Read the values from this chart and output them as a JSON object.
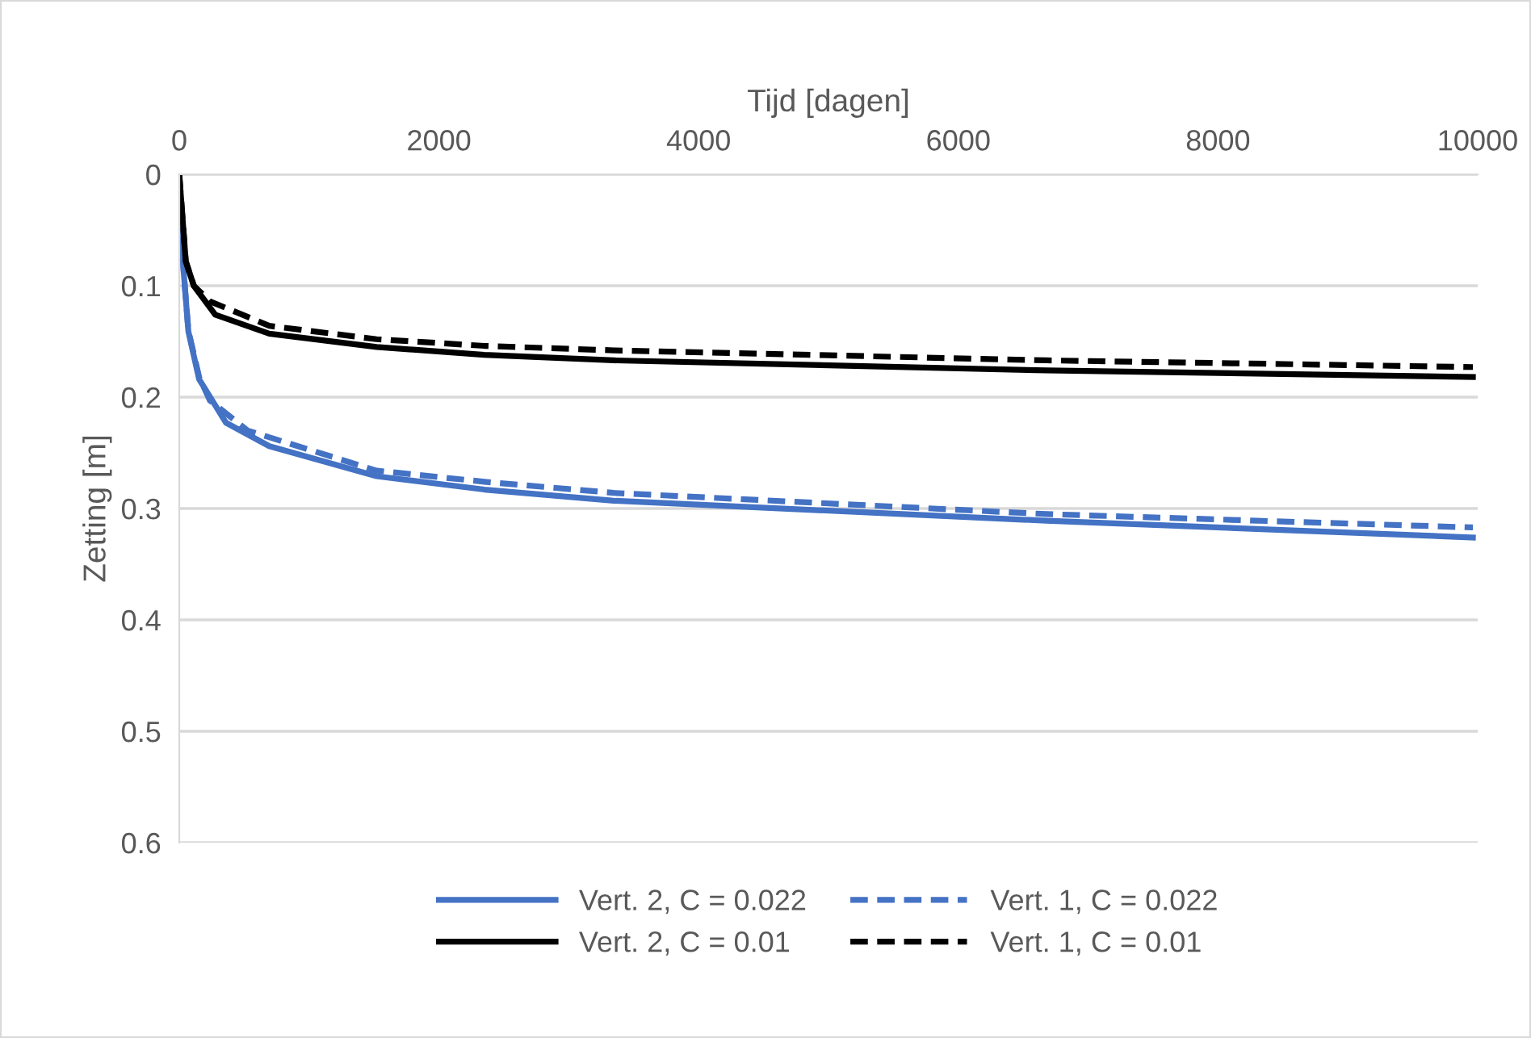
{
  "chart_data": {
    "type": "line",
    "xlabel": "Tijd [dagen]",
    "ylabel": "Zetting [m]",
    "xlim": [
      0,
      10000
    ],
    "xticks": [
      0,
      2000,
      4000,
      6000,
      8000,
      10000
    ],
    "ylim": [
      0.6,
      0
    ],
    "yticks": [
      0,
      0.1,
      0.2,
      0.3,
      0.4,
      0.5,
      0.6
    ],
    "grid": "y",
    "legend": "bottom",
    "marker": "none",
    "series": [
      {
        "name": "Vert. 2, C = 0.022",
        "color": "#4472c4",
        "line_style": "solid",
        "x": [
          8,
          70,
          153,
          360,
          693,
          1520,
          2350,
          3346,
          6680,
          9963
        ],
        "values": [
          0.049,
          0.141,
          0.184,
          0.223,
          0.244,
          0.271,
          0.283,
          0.293,
          0.311,
          0.326
        ]
      },
      {
        "name": "Vert. 1, C = 0.022",
        "color": "#4472c4",
        "line_style": "dashed",
        "x": [
          8,
          70,
          153,
          236,
          526,
          1520,
          2350,
          3346,
          6680,
          9963
        ],
        "values": [
          0.049,
          0.14,
          0.182,
          0.203,
          0.23,
          0.266,
          0.276,
          0.286,
          0.305,
          0.317
        ]
      },
      {
        "name": "Vert. 2, C = 0.01",
        "color": "#000000",
        "line_style": "solid",
        "x": [
          0,
          50,
          112,
          277,
          693,
          1520,
          2350,
          3346,
          6680,
          9963
        ],
        "values": [
          0,
          0.078,
          0.1,
          0.126,
          0.143,
          0.155,
          0.162,
          0.167,
          0.176,
          0.182
        ]
      },
      {
        "name": "Vert. 1, C = 0.01",
        "color": "#000000",
        "line_style": "dashed",
        "x": [
          0,
          50,
          112,
          236,
          693,
          1520,
          2350,
          3346,
          6680,
          9963
        ],
        "values": [
          0,
          0.078,
          0.1,
          0.114,
          0.136,
          0.148,
          0.154,
          0.158,
          0.167,
          0.173
        ]
      }
    ]
  }
}
